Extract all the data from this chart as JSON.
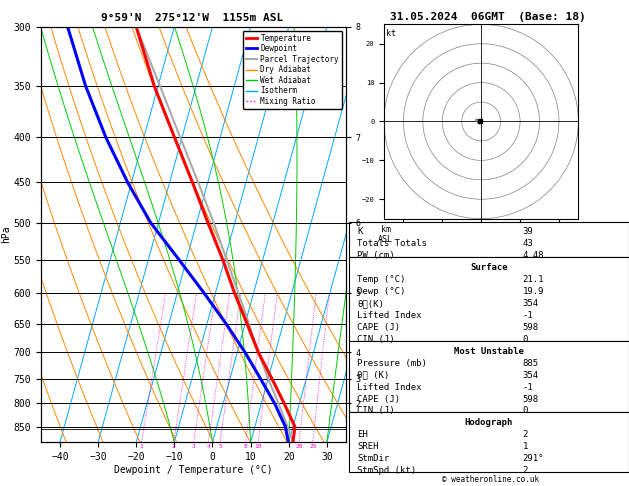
{
  "title_left": "9°59'N  275°12'W  1155m ASL",
  "title_right": "31.05.2024  06GMT  (Base: 18)",
  "pressure_levels": [
    300,
    350,
    400,
    450,
    500,
    550,
    600,
    650,
    700,
    750,
    800,
    850
  ],
  "pressure_min": 300,
  "pressure_max": 885,
  "temp_min": -45,
  "temp_max": 35,
  "isotherm_temps": [
    -40,
    -30,
    -20,
    -10,
    0,
    10,
    20,
    30
  ],
  "dry_adiabat_temps": [
    -30,
    -20,
    -10,
    0,
    10,
    20,
    30,
    40,
    50,
    60
  ],
  "wet_adiabat_temps": [
    -10,
    0,
    10,
    20,
    30
  ],
  "mixing_ratio_values": [
    1,
    2,
    3,
    4,
    5,
    8,
    10,
    20,
    25
  ],
  "lcl_pressure": 855,
  "color_isotherm": "#00aaff",
  "color_dry_adiabat": "#ff8800",
  "color_wet_adiabat": "#00cc00",
  "color_mixing_ratio": "#ff00cc",
  "color_temperature": "#ff0000",
  "color_dewpoint": "#0000ff",
  "color_parcel": "#aaaaaa",
  "legend_entries": [
    {
      "label": "Temperature",
      "color": "#ff0000",
      "lw": 2,
      "ls": "solid"
    },
    {
      "label": "Dewpoint",
      "color": "#0000ff",
      "lw": 2,
      "ls": "solid"
    },
    {
      "label": "Parcel Trajectory",
      "color": "#aaaaaa",
      "lw": 1.5,
      "ls": "solid"
    },
    {
      "label": "Dry Adiabat",
      "color": "#ff8800",
      "lw": 1,
      "ls": "solid"
    },
    {
      "label": "Wet Adiabat",
      "color": "#00cc00",
      "lw": 1,
      "ls": "solid"
    },
    {
      "label": "Isotherm",
      "color": "#00aaff",
      "lw": 1,
      "ls": "solid"
    },
    {
      "label": "Mixing Ratio",
      "color": "#ff00cc",
      "lw": 1,
      "ls": "dotted"
    }
  ],
  "temp_profile": {
    "pressure": [
      885,
      850,
      800,
      750,
      700,
      650,
      600,
      550,
      500,
      450,
      400,
      350,
      300
    ],
    "temp": [
      21.1,
      20.5,
      16.0,
      11.0,
      5.5,
      0.5,
      -5.0,
      -10.5,
      -17.0,
      -24.0,
      -32.0,
      -41.0,
      -50.0
    ]
  },
  "dewp_profile": {
    "pressure": [
      885,
      850,
      800,
      750,
      700,
      650,
      600,
      550,
      500,
      450,
      400,
      350,
      300
    ],
    "temp": [
      19.9,
      18.0,
      13.5,
      8.0,
      2.0,
      -5.0,
      -13.0,
      -22.0,
      -32.0,
      -41.0,
      -50.0,
      -59.0,
      -68.0
    ]
  },
  "parcel_profile": {
    "pressure": [
      885,
      855,
      800,
      750,
      700,
      650,
      600,
      550,
      500,
      450,
      400,
      350,
      300
    ],
    "temp": [
      21.1,
      19.0,
      14.5,
      10.0,
      5.5,
      1.0,
      -4.0,
      -9.5,
      -15.5,
      -22.5,
      -30.5,
      -39.5,
      -50.0
    ]
  },
  "stats": {
    "K": "39",
    "Totals_Totals": "43",
    "PW_cm": "4.48",
    "Surf_Temp": "21.1",
    "Surf_Dewp": "19.9",
    "Surf_theta_e": "354",
    "Lifted_Index": "-1",
    "CAPE": "598",
    "CIN": "0",
    "MU_Pressure": "885",
    "MU_theta_e": "354",
    "MU_LI": "-1",
    "MU_CAPE": "598",
    "MU_CIN": "0",
    "EH": "2",
    "SREH": "1",
    "StmDir": "291°",
    "StmSpd": "2"
  },
  "hodograph_u": [
    -0.3,
    -0.8,
    -1.2,
    -1.5,
    -1.0,
    -0.5
  ],
  "hodograph_v": [
    0.1,
    0.3,
    0.6,
    0.3,
    -0.2,
    -0.5
  ],
  "bg_color": "#ffffff"
}
